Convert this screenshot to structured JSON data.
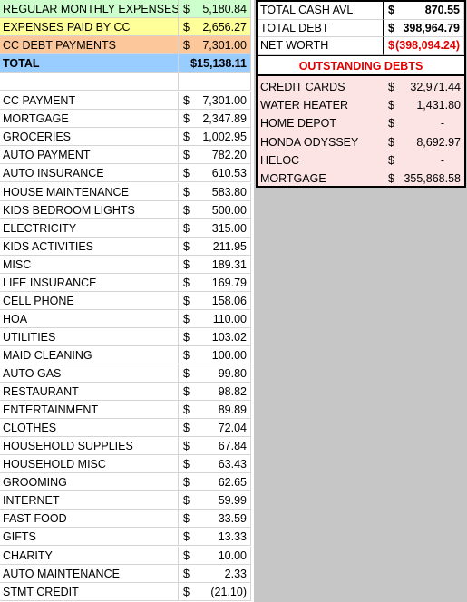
{
  "summary": [
    {
      "label": "REGULAR MONTHLY EXPENSES",
      "dollar": "$",
      "amount": "5,180.84",
      "color": "#ccffcc"
    },
    {
      "label": "EXPENSES PAID BY CC",
      "dollar": "$",
      "amount": "2,656.27",
      "color": "#ffff99"
    },
    {
      "label": "CC DEBT PAYMENTS",
      "dollar": "$",
      "amount": "7,301.00",
      "color": "#fcc89b"
    },
    {
      "label": "TOTAL",
      "dollar": "",
      "amount": "$15,138.11",
      "color": "#99ccff"
    }
  ],
  "right_top": [
    {
      "label": "TOTAL CASH AVL",
      "dollar": "$",
      "amount": "870.55"
    },
    {
      "label": "TOTAL DEBT",
      "dollar": "$",
      "amount": "398,964.79"
    },
    {
      "label": "NET WORTH",
      "dollar": "$",
      "amount": "(398,094.24)"
    }
  ],
  "debts_title": "OUTSTANDING DEBTS",
  "debts": [
    {
      "label": "CREDIT CARDS",
      "dollar": "$",
      "amount": "32,971.44"
    },
    {
      "label": "WATER HEATER",
      "dollar": "$",
      "amount": "1,431.80"
    },
    {
      "label": "HOME DEPOT",
      "dollar": "$",
      "amount": "-"
    },
    {
      "label": "HONDA ODYSSEY",
      "dollar": "$",
      "amount": "8,692.97"
    },
    {
      "label": "HELOC",
      "dollar": "$",
      "amount": "-"
    },
    {
      "label": "MORTGAGE",
      "dollar": "$",
      "amount": "355,868.58"
    }
  ],
  "expenses": [
    {
      "label": "CC PAYMENT",
      "dollar": "$",
      "amount": "7,301.00"
    },
    {
      "label": "MORTGAGE",
      "dollar": "$",
      "amount": "2,347.89"
    },
    {
      "label": "GROCERIES",
      "dollar": "$",
      "amount": "1,002.95"
    },
    {
      "label": "AUTO PAYMENT",
      "dollar": "$",
      "amount": "782.20"
    },
    {
      "label": "AUTO INSURANCE",
      "dollar": "$",
      "amount": "610.53"
    },
    {
      "label": "HOUSE MAINTENANCE",
      "dollar": "$",
      "amount": "583.80"
    },
    {
      "label": "KIDS BEDROOM LIGHTS",
      "dollar": "$",
      "amount": "500.00"
    },
    {
      "label": "ELECTRICITY",
      "dollar": "$",
      "amount": "315.00"
    },
    {
      "label": "KIDS ACTIVITIES",
      "dollar": "$",
      "amount": "211.95"
    },
    {
      "label": "MISC",
      "dollar": "$",
      "amount": "189.31"
    },
    {
      "label": "LIFE INSURANCE",
      "dollar": "$",
      "amount": "169.79"
    },
    {
      "label": "CELL PHONE",
      "dollar": "$",
      "amount": "158.06"
    },
    {
      "label": "HOA",
      "dollar": "$",
      "amount": "110.00"
    },
    {
      "label": "UTILITIES",
      "dollar": "$",
      "amount": "103.02"
    },
    {
      "label": "MAID CLEANING",
      "dollar": "$",
      "amount": "100.00"
    },
    {
      "label": "AUTO GAS",
      "dollar": "$",
      "amount": "99.80"
    },
    {
      "label": "RESTAURANT",
      "dollar": "$",
      "amount": "98.82"
    },
    {
      "label": "ENTERTAINMENT",
      "dollar": "$",
      "amount": "89.89"
    },
    {
      "label": "CLOTHES",
      "dollar": "$",
      "amount": "72.04"
    },
    {
      "label": "HOUSEHOLD SUPPLIES",
      "dollar": "$",
      "amount": "67.84"
    },
    {
      "label": "HOUSEHOLD MISC",
      "dollar": "$",
      "amount": "63.43"
    },
    {
      "label": "GROOMING",
      "dollar": "$",
      "amount": "62.65"
    },
    {
      "label": "INTERNET",
      "dollar": "$",
      "amount": "59.99"
    },
    {
      "label": "FAST FOOD",
      "dollar": "$",
      "amount": "33.59"
    },
    {
      "label": "GIFTS",
      "dollar": "$",
      "amount": "13.33"
    },
    {
      "label": "CHARITY",
      "dollar": "$",
      "amount": "10.00"
    },
    {
      "label": "AUTO MAINTENANCE",
      "dollar": "$",
      "amount": "2.33"
    },
    {
      "label": "STMT CREDIT",
      "dollar": "$",
      "amount": "(21.10)"
    }
  ]
}
